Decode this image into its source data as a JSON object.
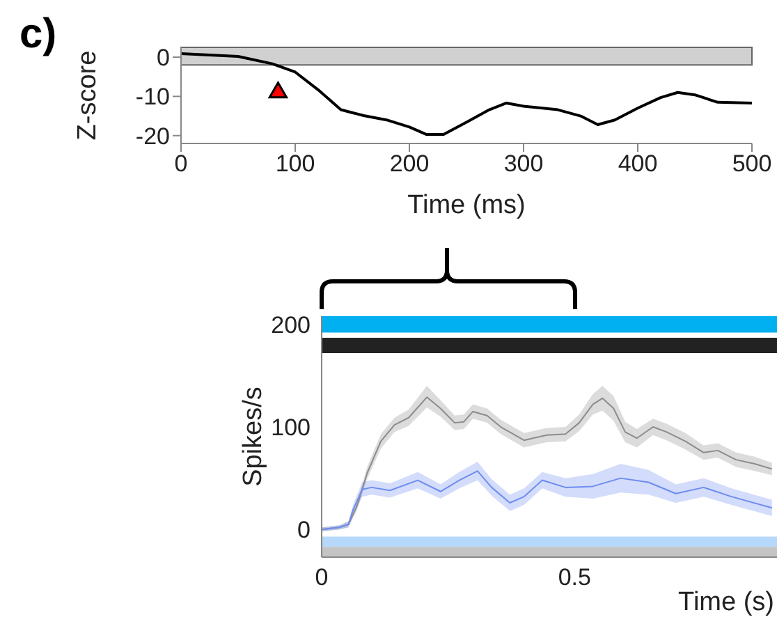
{
  "chart_data": [
    {
      "type": "line",
      "annotations": [
        "c)"
      ],
      "xlabel": "Time (ms)",
      "ylabel": "Z-score",
      "xlim": [
        0,
        500
      ],
      "ylim": [
        -22,
        2.5
      ],
      "xticks": [
        0,
        100,
        200,
        300,
        400,
        500
      ],
      "yticks": [
        -20,
        -10,
        0
      ],
      "bands": [
        {
          "axis": "y",
          "from": -2,
          "to": 2.5,
          "color": "#d0d0d0"
        }
      ],
      "series": [
        {
          "color": "#000000",
          "x": [
            0,
            50,
            80,
            100,
            120,
            140,
            160,
            180,
            200,
            215,
            230,
            250,
            270,
            285,
            300,
            330,
            350,
            365,
            380,
            400,
            420,
            435,
            450,
            470,
            500
          ],
          "values": [
            0.9,
            0.2,
            -1.7,
            -3.8,
            -8.3,
            -13.4,
            -14.9,
            -16,
            -17.8,
            -19.7,
            -19.7,
            -16.6,
            -13.4,
            -11.7,
            -12.5,
            -13.4,
            -15,
            -17.2,
            -16,
            -13,
            -10.3,
            -9,
            -9.6,
            -11.5,
            -11.7
          ]
        },
        {
          "type": "scatter",
          "marker": "triangle",
          "color": "#ff0000",
          "x": [
            85
          ],
          "values": [
            -9
          ]
        }
      ]
    },
    {
      "type": "line",
      "xlabel": "Time (s)",
      "ylabel": "Spikes/s",
      "xlim": [
        0,
        0.9
      ],
      "ylim": [
        -27,
        208
      ],
      "xticks": [
        0,
        0.5
      ],
      "yticks": [
        0,
        100,
        200
      ],
      "bands": [
        {
          "axis": "y",
          "from": 192,
          "to": 208,
          "color": "#00b0f0"
        },
        {
          "axis": "y",
          "from": 172,
          "to": 187,
          "color": "#222222"
        },
        {
          "axis": "y",
          "from": -17,
          "to": -7,
          "color": "#b5d8fb"
        },
        {
          "axis": "y",
          "from": -27,
          "to": -17,
          "color": "#c4c4c4"
        }
      ],
      "series": [
        {
          "color": "#8c8c8c",
          "x": [
            0,
            0.035,
            0.053,
            0.07,
            0.09,
            0.117,
            0.144,
            0.172,
            0.208,
            0.235,
            0.263,
            0.281,
            0.299,
            0.327,
            0.354,
            0.4,
            0.445,
            0.482,
            0.509,
            0.536,
            0.555,
            0.577,
            0.6,
            0.623,
            0.655,
            0.682,
            0.719,
            0.755,
            0.783,
            0.819,
            0.856,
            0.89
          ],
          "values": [
            0,
            2,
            5,
            23,
            55,
            86,
            102,
            109,
            129,
            118,
            104,
            105,
            115,
            111,
            100,
            87,
            92,
            93,
            104,
            122,
            128,
            118,
            95,
            89,
            100,
            95,
            86,
            75,
            77,
            68,
            64,
            59
          ],
          "lower": [
            -2,
            0,
            2,
            19,
            49,
            79,
            95,
            101,
            119,
            110,
            97,
            98,
            108,
            104,
            93,
            80,
            85,
            86,
            96,
            112,
            116,
            106,
            85,
            80,
            92,
            87,
            78,
            68,
            70,
            61,
            57,
            53
          ],
          "upper": [
            2,
            4,
            8,
            27,
            61,
            93,
            109,
            117,
            140,
            126,
            111,
            112,
            122,
            118,
            107,
            94,
            99,
            100,
            112,
            132,
            140,
            130,
            105,
            98,
            108,
            103,
            94,
            82,
            84,
            75,
            71,
            65
          ]
        },
        {
          "color": "#6e8cf0",
          "x": [
            0,
            0.035,
            0.053,
            0.062,
            0.08,
            0.099,
            0.135,
            0.19,
            0.235,
            0.272,
            0.308,
            0.336,
            0.372,
            0.4,
            0.436,
            0.482,
            0.536,
            0.591,
            0.646,
            0.7,
            0.755,
            0.81,
            0.89
          ],
          "values": [
            0,
            2,
            5,
            19,
            39,
            41,
            38,
            48,
            37,
            48,
            57,
            41,
            26,
            32,
            48,
            41,
            42,
            50,
            46,
            35,
            41,
            32,
            21
          ],
          "lower": [
            -2,
            0,
            2,
            14,
            32,
            34,
            31,
            40,
            30,
            40,
            48,
            33,
            18,
            24,
            40,
            32,
            30,
            36,
            34,
            26,
            32,
            24,
            13
          ],
          "upper": [
            2,
            4,
            8,
            24,
            46,
            48,
            45,
            56,
            44,
            56,
            66,
            49,
            34,
            40,
            56,
            50,
            54,
            64,
            58,
            44,
            50,
            40,
            29
          ]
        }
      ]
    }
  ]
}
